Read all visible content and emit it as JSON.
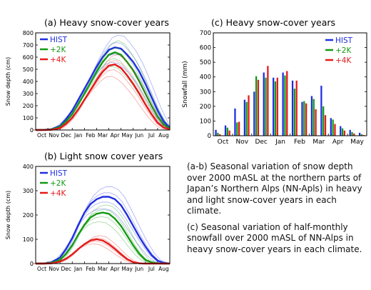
{
  "chart_data": [
    {
      "id": "a",
      "type": "line",
      "title": "(a) Heavy snow-cover years",
      "ylabel": "Snow depth (cm)",
      "xlabel": "",
      "ylim": [
        0,
        800
      ],
      "yticks": [
        0,
        100,
        200,
        300,
        400,
        500,
        600,
        700,
        800
      ],
      "x_months": [
        "Oct",
        "Nov",
        "Dec",
        "Jan",
        "Feb",
        "Mar",
        "Apr",
        "May",
        "Jun",
        "Jul",
        "Aug"
      ],
      "legend": "top-left",
      "series": [
        {
          "name": "HIST",
          "color": "#1f2ee0",
          "x": [
            0,
            0.7,
            1.3,
            2,
            2.5,
            3,
            3.5,
            4,
            4.5,
            5,
            5.5,
            6,
            6.5,
            7,
            7.5,
            8,
            8.5,
            9,
            9.5,
            10,
            10.5,
            11
          ],
          "values": [
            0,
            2,
            6,
            35,
            90,
            160,
            250,
            340,
            430,
            520,
            600,
            660,
            680,
            670,
            620,
            560,
            480,
            380,
            270,
            160,
            70,
            20
          ]
        },
        {
          "name": "+2K",
          "color": "#139a13",
          "x": [
            0,
            0.7,
            1.3,
            2,
            2.5,
            3,
            3.5,
            4,
            4.5,
            5,
            5.5,
            6,
            6.5,
            7,
            7.5,
            8,
            8.5,
            9,
            9.5,
            10,
            10.5,
            11
          ],
          "values": [
            0,
            1,
            4,
            25,
            70,
            130,
            215,
            300,
            390,
            480,
            560,
            620,
            640,
            620,
            560,
            490,
            400,
            300,
            200,
            110,
            45,
            12
          ]
        },
        {
          "name": "+4K",
          "color": "#e41a1a",
          "x": [
            0,
            0.7,
            1.3,
            2,
            2.5,
            3,
            3.5,
            4,
            4.5,
            5,
            5.5,
            6,
            6.5,
            7,
            7.5,
            8,
            8.5,
            9,
            9.5,
            10,
            10.5,
            11
          ],
          "values": [
            0,
            0,
            2,
            15,
            50,
            100,
            170,
            250,
            330,
            410,
            480,
            530,
            540,
            510,
            450,
            380,
            300,
            210,
            130,
            60,
            20,
            5
          ]
        }
      ]
    },
    {
      "id": "b",
      "type": "line",
      "title": "(b) Light snow cover years",
      "ylabel": "Snow depth (cm)",
      "xlabel": "",
      "ylim": [
        0,
        400
      ],
      "yticks": [
        0,
        100,
        200,
        300,
        400
      ],
      "x_months": [
        "Oct",
        "Nov",
        "Dec",
        "Jan",
        "Feb",
        "Mar",
        "Apr",
        "May",
        "Jun",
        "Jul",
        "Aug"
      ],
      "legend": "top-left",
      "series": [
        {
          "name": "HIST",
          "color": "#1f2ee0",
          "x": [
            0,
            0.7,
            1.3,
            2,
            2.5,
            3,
            3.5,
            4,
            4.5,
            5,
            5.5,
            6,
            6.5,
            7,
            7.5,
            8,
            8.5,
            9,
            9.5,
            10,
            10.5,
            11
          ],
          "values": [
            0,
            1,
            5,
            25,
            60,
            105,
            160,
            210,
            245,
            265,
            275,
            275,
            265,
            240,
            200,
            155,
            110,
            70,
            35,
            12,
            3,
            0
          ]
        },
        {
          "name": "+2K",
          "color": "#139a13",
          "x": [
            0,
            0.7,
            1.3,
            2,
            2.5,
            3,
            3.5,
            4,
            4.5,
            5,
            5.5,
            6,
            6.5,
            7,
            7.5,
            8,
            8.5,
            9,
            9.5,
            10,
            10.5,
            11
          ],
          "values": [
            0,
            0,
            3,
            15,
            40,
            75,
            120,
            160,
            190,
            205,
            210,
            205,
            185,
            155,
            115,
            75,
            40,
            15,
            5,
            1,
            0,
            0
          ]
        },
        {
          "name": "+4K",
          "color": "#e41a1a",
          "x": [
            0,
            0.7,
            1.3,
            2,
            2.5,
            3,
            3.5,
            4,
            4.5,
            5,
            5.5,
            6,
            6.5,
            7,
            7.5,
            8,
            8.5,
            9,
            9.5,
            10,
            10.5,
            11
          ],
          "values": [
            0,
            0,
            1,
            8,
            20,
            38,
            60,
            80,
            95,
            100,
            95,
            80,
            60,
            38,
            18,
            6,
            1,
            0,
            0,
            0,
            0,
            0
          ]
        }
      ]
    },
    {
      "id": "c",
      "type": "bar",
      "title": "(c) Heavy snow-cover years",
      "ylabel": "Snowfall (mm)",
      "xlabel": "",
      "ylim": [
        0,
        700
      ],
      "yticks": [
        0,
        100,
        200,
        300,
        400,
        500,
        600,
        700
      ],
      "month_labels": [
        "Oct",
        "Nov",
        "Dec",
        "Jan",
        "Feb",
        "Mar",
        "Apr",
        "May"
      ],
      "categories": [
        "Oct-1",
        "Oct-2",
        "Nov-1",
        "Nov-2",
        "Dec-1",
        "Dec-2",
        "Jan-1",
        "Jan-2",
        "Feb-1",
        "Feb-2",
        "Mar-1",
        "Mar-2",
        "Apr-1",
        "Apr-2",
        "May-1",
        "May-2"
      ],
      "legend": "top-right",
      "series": [
        {
          "name": "HIST",
          "color": "#1f2ee0",
          "values": [
            40,
            70,
            185,
            245,
            300,
            430,
            395,
            430,
            375,
            230,
            270,
            340,
            120,
            65,
            40,
            20
          ]
        },
        {
          "name": "+2K",
          "color": "#139a13",
          "values": [
            20,
            55,
            90,
            230,
            405,
            395,
            370,
            410,
            320,
            235,
            250,
            200,
            110,
            50,
            25,
            10
          ]
        },
        {
          "name": "+4K",
          "color": "#e41a1a",
          "values": [
            10,
            35,
            95,
            275,
            380,
            475,
            395,
            440,
            375,
            220,
            180,
            140,
            80,
            35,
            15,
            5
          ]
        }
      ]
    }
  ],
  "caption": {
    "p1": "(a-b) Seasonal variation of snow depth over 2000 mASL at the northern parts of Japan’s Northern Alps (NN-Apls) in heavy and light snow-cover years in each climate.",
    "p2": "(c) Seasonal variation of half-monthly snowfall over 2000 mASL of NN-Alps in heavy snow-cover years in each climate."
  }
}
